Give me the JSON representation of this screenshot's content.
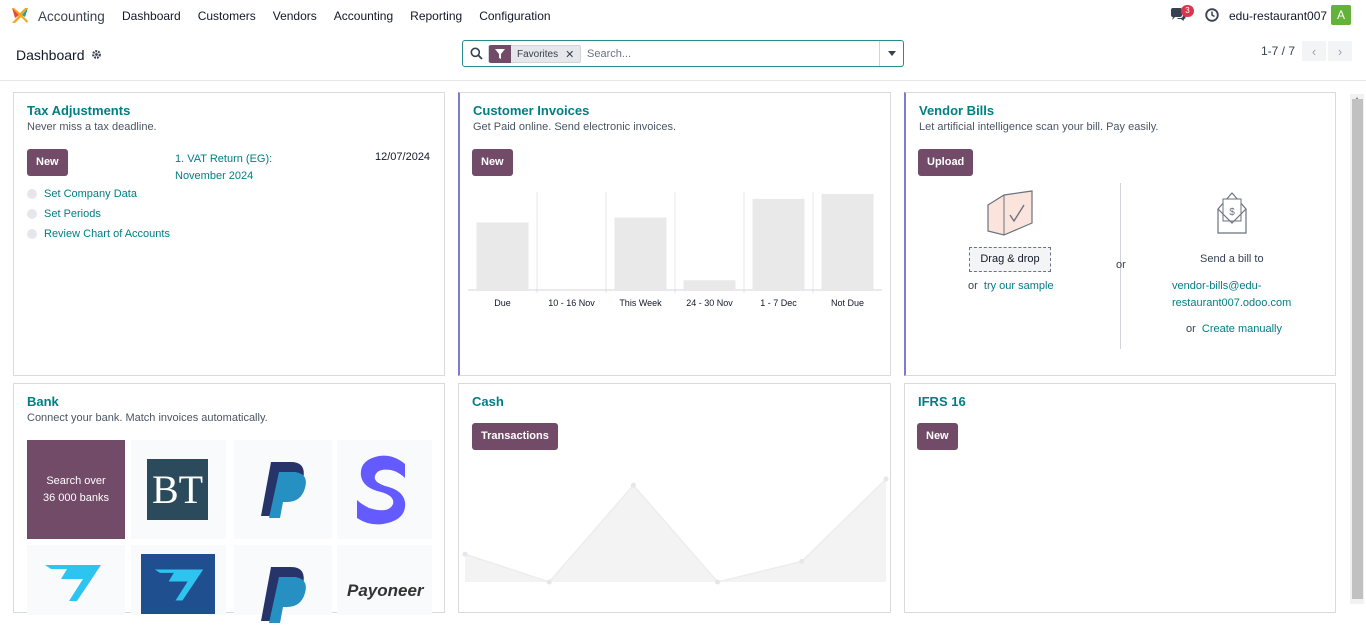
{
  "app": {
    "name": "Accounting"
  },
  "menu": [
    "Dashboard",
    "Customers",
    "Vendors",
    "Accounting",
    "Reporting",
    "Configuration"
  ],
  "navbar": {
    "chat_count": "3",
    "company": "edu-restaurant007",
    "avatar_letter": "A"
  },
  "control": {
    "breadcrumb": "Dashboard",
    "facet_label": "Favorites",
    "search_placeholder": "Search...",
    "pager": "1-7 / 7"
  },
  "tax": {
    "title": "Tax Adjustments",
    "subtitle": "Never miss a tax deadline.",
    "new_label": "New",
    "vat_link": "1. VAT Return (EG): November 2024",
    "vat_date": "12/07/2024",
    "checklist": [
      "Set Company Data",
      "Set Periods",
      "Review Chart of Accounts"
    ]
  },
  "invoices": {
    "title": "Customer Invoices",
    "subtitle": "Get Paid online. Send electronic invoices.",
    "new_label": "New"
  },
  "vendor": {
    "title": "Vendor Bills",
    "subtitle": "Let artificial intelligence scan your bill. Pay easily.",
    "upload_label": "Upload",
    "drag_label": "Drag & drop",
    "or_try_prefix": "or",
    "try_sample": "try our sample",
    "or_mid": "or",
    "send_bill": "Send a bill to",
    "email_line1": "vendor-bills@edu-",
    "email_line2": "restaurant007.odoo.com",
    "or_create_prefix": "or",
    "create_manually": "Create manually"
  },
  "bank": {
    "title": "Bank",
    "subtitle": "Connect your bank. Match invoices automatically.",
    "search_line1": "Search over",
    "search_line2": "36 000 banks",
    "bt_logo": "BT",
    "payoneer_logo": "Payoneer"
  },
  "cash": {
    "title": "Cash",
    "transactions_label": "Transactions"
  },
  "ifrs": {
    "title": "IFRS 16",
    "new_label": "New"
  },
  "chart_data": [
    {
      "type": "bar",
      "title": "",
      "categories": [
        "Due",
        "10 - 16 Nov",
        "This Week",
        "24 - 30 Nov",
        "1 - 7 Dec",
        "Not Due"
      ],
      "values": [
        69,
        0,
        74,
        10,
        93,
        98
      ],
      "ylim": [
        0,
        100
      ],
      "grid": false,
      "colors": [
        "#e9e9e9"
      ]
    },
    {
      "type": "line",
      "title": "",
      "x": [
        1,
        2,
        3,
        4,
        5,
        6
      ],
      "values": [
        27,
        0,
        94,
        0,
        20,
        100
      ],
      "ylim": [
        0,
        100
      ],
      "area": true,
      "colors": [
        "#ededed"
      ]
    }
  ]
}
